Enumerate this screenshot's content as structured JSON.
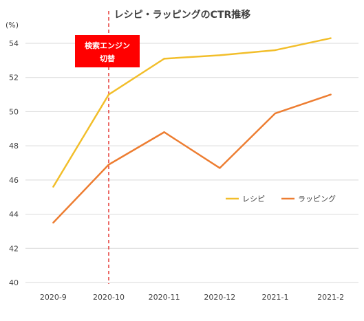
{
  "chart_data": {
    "type": "line",
    "title": "レシピ・ラッピングのCTR推移",
    "y_unit": "(%)",
    "categories": [
      "2020-9",
      "2020-10",
      "2020-11",
      "2020-12",
      "2021-1",
      "2021-2"
    ],
    "series": [
      {
        "name": "レシピ",
        "color": "#F2BE2A",
        "values": [
          45.6,
          51.0,
          53.1,
          53.3,
          53.6,
          54.3
        ]
      },
      {
        "name": "ラッピング",
        "color": "#ED7D31",
        "values": [
          43.5,
          46.9,
          48.8,
          46.7,
          49.9,
          51.0
        ]
      }
    ],
    "ylim": [
      40,
      54
    ],
    "yticks": [
      "40",
      "42",
      "44",
      "46",
      "48",
      "50",
      "52",
      "54"
    ],
    "grid": true,
    "legend_position": "right-middle",
    "annotation": {
      "line1": "検索エンジン",
      "line2": "切替",
      "category": "2020-10",
      "line_color": "#E53935",
      "box_color": "#FF0000"
    }
  }
}
